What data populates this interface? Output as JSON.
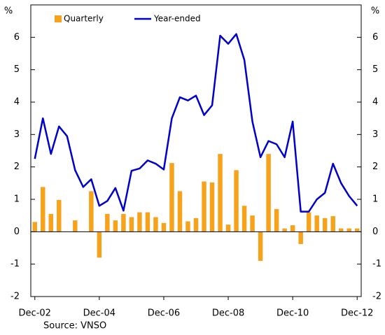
{
  "chart_data": {
    "type": "combo",
    "y_label": "%",
    "y2_label": "%",
    "source": "Source: VNSO",
    "categories": [
      "Dec-02",
      null,
      null,
      null,
      null,
      null,
      null,
      null,
      "Dec-04",
      null,
      null,
      null,
      null,
      null,
      null,
      null,
      "Dec-06",
      null,
      null,
      null,
      null,
      null,
      null,
      null,
      "Dec-08",
      null,
      null,
      null,
      null,
      null,
      null,
      null,
      "Dec-10",
      null,
      null,
      null,
      null,
      null,
      null,
      null,
      "Dec-12"
    ],
    "series": [
      {
        "name": "Quarterly",
        "type": "bar",
        "color": "#f7a21b",
        "values": [
          0.3,
          1.38,
          0.55,
          0.98,
          0,
          0.35,
          0,
          1.25,
          -0.8,
          0.55,
          0.35,
          0.55,
          0.45,
          0.6,
          0.6,
          0.45,
          0.27,
          2.12,
          1.25,
          0.32,
          0.42,
          1.55,
          1.52,
          2.4,
          0.22,
          1.9,
          0.8,
          0.5,
          -0.9,
          2.4,
          0.7,
          0.1,
          0.2,
          -0.38,
          0.6,
          0.5,
          0.42,
          0.48,
          0.1,
          0.1,
          0.1
        ]
      },
      {
        "name": "Year-ended",
        "type": "line",
        "color": "#0000cc",
        "values": [
          2.25,
          3.5,
          2.4,
          3.25,
          2.95,
          1.9,
          1.38,
          1.62,
          0.8,
          0.95,
          1.35,
          0.65,
          1.88,
          1.95,
          2.2,
          2.1,
          1.92,
          3.5,
          4.15,
          4.05,
          4.2,
          3.6,
          3.9,
          6.05,
          5.8,
          6.1,
          5.3,
          3.4,
          2.3,
          2.8,
          2.7,
          2.3,
          3.4,
          0.62,
          0.62,
          1.0,
          1.2,
          2.1,
          1.5,
          1.1,
          0.8
        ]
      }
    ],
    "ylim": [
      -2,
      7
    ],
    "yticks": [
      -2,
      -1,
      0,
      1,
      2,
      3,
      4,
      5,
      6
    ],
    "y2lim": [
      -2,
      7
    ],
    "y2ticks": [
      -2,
      -1,
      0,
      1,
      2,
      3,
      4,
      5,
      6
    ],
    "legend": "top-left"
  }
}
